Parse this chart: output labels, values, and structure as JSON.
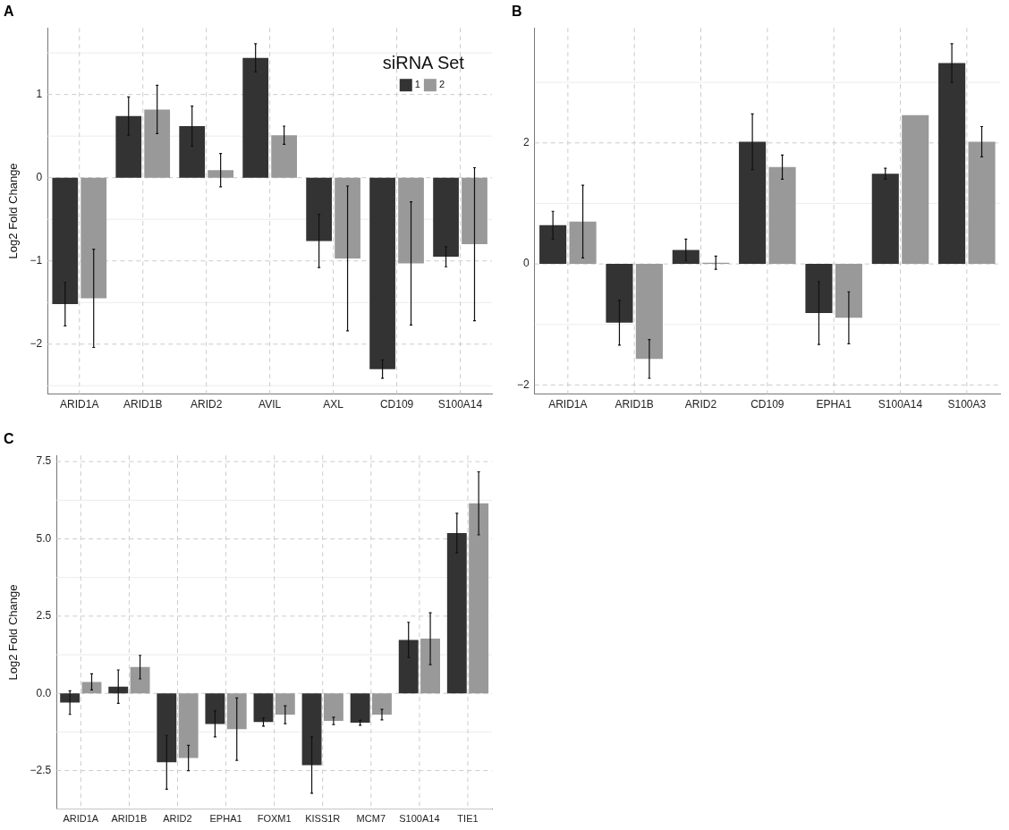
{
  "chart_data": [
    {
      "type": "bar",
      "title": "A",
      "ylabel": "Log2 Fold Change",
      "legend_title": "siRNA Set",
      "legend": "top right",
      "grid": true,
      "categories": [
        "ARID1A",
        "ARID1B",
        "ARID2",
        "AVIL",
        "AXL",
        "CD109",
        "S100A14"
      ],
      "ylim": [
        -2.6,
        1.8
      ],
      "yticks": [
        {
          "value": -2.5,
          "label": null
        },
        {
          "value": -2,
          "label": "−2"
        },
        {
          "value": -1.5,
          "label": null
        },
        {
          "value": -1,
          "label": "−1"
        },
        {
          "value": -0.5,
          "label": null
        },
        0,
        {
          "value": 0.5,
          "label": null
        },
        1,
        {
          "value": 1.5,
          "label": null
        }
      ],
      "series": [
        {
          "name": "1",
          "color": "#333333",
          "values": [
            -1.52,
            0.74,
            0.62,
            1.44,
            -0.76,
            -2.3,
            -0.95
          ],
          "errors": [
            0.26,
            0.23,
            0.24,
            0.17,
            0.32,
            0.11,
            0.12
          ]
        },
        {
          "name": "2",
          "color": "#999999",
          "values": [
            -1.45,
            0.82,
            0.09,
            0.51,
            -0.97,
            -1.03,
            -0.8
          ],
          "errors": [
            0.59,
            0.29,
            0.2,
            0.11,
            0.87,
            0.74,
            0.92
          ]
        }
      ]
    },
    {
      "type": "bar",
      "title": "B",
      "grid": true,
      "categories": [
        "ARID1A",
        "ARID1B",
        "ARID2",
        "CD109",
        "EPHA1",
        "S100A14",
        "S100A3"
      ],
      "ylim": [
        -2.15,
        3.9
      ],
      "yticks": [
        {
          "value": -2,
          "label": "−2"
        },
        {
          "value": -1,
          "label": null
        },
        0,
        {
          "value": 1,
          "label": null
        },
        2,
        {
          "value": 3,
          "label": null
        }
      ],
      "series": [
        {
          "color": "#333333",
          "values": [
            0.64,
            -0.97,
            0.23,
            2.02,
            -0.81,
            1.49,
            3.32
          ],
          "errors": [
            0.23,
            0.37,
            0.18,
            0.46,
            0.52,
            0.09,
            0.32
          ]
        },
        {
          "color": "#999999",
          "values": [
            0.7,
            -1.57,
            0.02,
            1.6,
            -0.89,
            2.46,
            2.02
          ],
          "errors": [
            0.6,
            0.32,
            0.11,
            0.2,
            0.43,
            null,
            0.25
          ]
        }
      ]
    },
    {
      "type": "bar",
      "title": "C",
      "ylabel": "Log2 Fold Change",
      "grid": true,
      "categories": [
        "ARID1A",
        "ARID1B",
        "ARID2",
        "EPHA1",
        "FOXM1",
        "KISS1R",
        "MCM7",
        "S100A14",
        "TIE1"
      ],
      "ylim": [
        -3.75,
        7.7
      ],
      "yticks": [
        {
          "value": -3.75,
          "label": null
        },
        {
          "value": -2.5,
          "label": "−2.5"
        },
        {
          "value": -1.25,
          "label": null
        },
        {
          "value": 0,
          "label": "0.0"
        },
        {
          "value": 1.25,
          "label": null
        },
        {
          "value": 2.5,
          "label": "2.5"
        },
        {
          "value": 3.75,
          "label": null
        },
        {
          "value": 5,
          "label": "5.0"
        },
        {
          "value": 6.25,
          "label": null
        },
        {
          "value": 7.5,
          "label": "7.5"
        }
      ],
      "series": [
        {
          "color": "#333333",
          "values": [
            -0.3,
            0.22,
            -2.23,
            -0.99,
            -0.93,
            -2.32,
            -0.95,
            1.73,
            5.19
          ],
          "errors": [
            0.38,
            0.54,
            0.87,
            0.42,
            0.13,
            0.91,
            0.08,
            0.57,
            0.64
          ]
        },
        {
          "color": "#999999",
          "values": [
            0.37,
            0.85,
            -2.09,
            -1.16,
            -0.69,
            -0.89,
            -0.69,
            1.77,
            6.15
          ],
          "errors": [
            0.26,
            0.38,
            0.41,
            1.01,
            0.29,
            0.12,
            0.17,
            0.84,
            1.02
          ]
        }
      ]
    }
  ]
}
